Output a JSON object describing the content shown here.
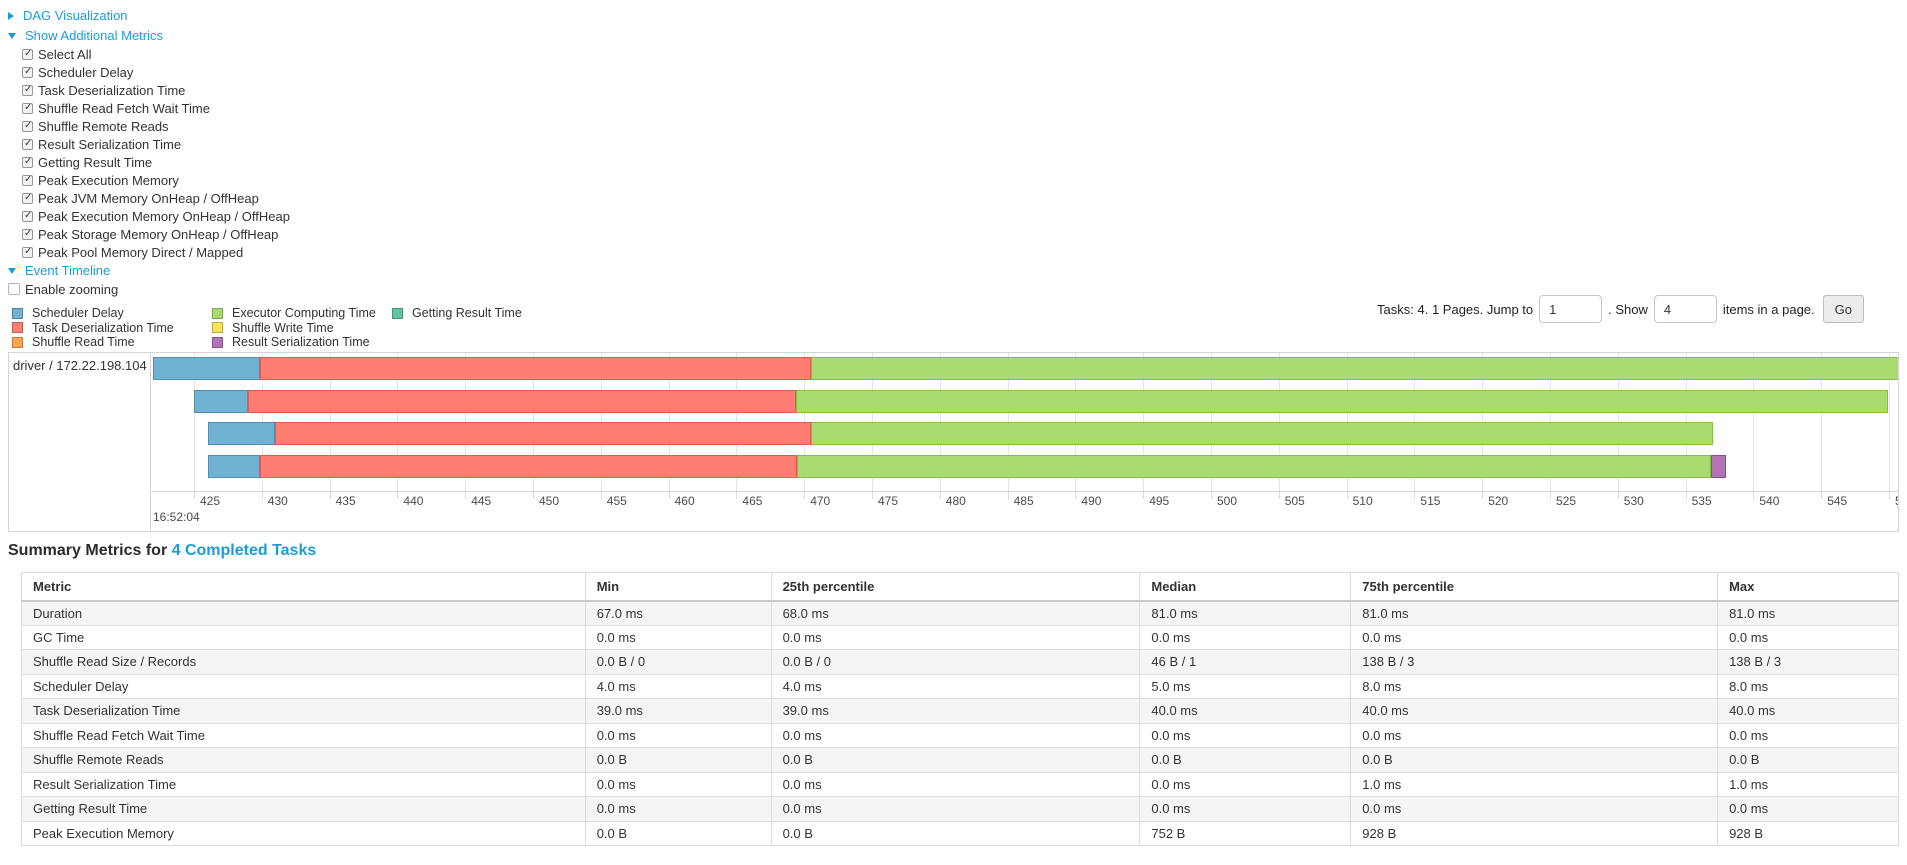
{
  "controls": {
    "dag": {
      "label": "DAG Visualization",
      "expanded": false
    },
    "metrics_toggle": {
      "label": "Show Additional Metrics",
      "expanded": true
    },
    "checkboxes": [
      {
        "label": "Select All",
        "checked": true
      },
      {
        "label": "Scheduler Delay",
        "checked": true
      },
      {
        "label": "Task Deserialization Time",
        "checked": true
      },
      {
        "label": "Shuffle Read Fetch Wait Time",
        "checked": true
      },
      {
        "label": "Shuffle Remote Reads",
        "checked": true
      },
      {
        "label": "Result Serialization Time",
        "checked": true
      },
      {
        "label": "Getting Result Time",
        "checked": true
      },
      {
        "label": "Peak Execution Memory",
        "checked": true
      },
      {
        "label": "Peak JVM Memory OnHeap / OffHeap",
        "checked": true
      },
      {
        "label": "Peak Execution Memory OnHeap / OffHeap",
        "checked": true
      },
      {
        "label": "Peak Storage Memory OnHeap / OffHeap",
        "checked": true
      },
      {
        "label": "Peak Pool Memory Direct / Mapped",
        "checked": true
      }
    ],
    "event_timeline": {
      "label": "Event Timeline",
      "expanded": true
    },
    "enable_zooming": {
      "label": "Enable zooming",
      "checked": false
    }
  },
  "colors": {
    "scheduler_delay": "#6FB2D4",
    "scheduler_delay_border": "#548EAD",
    "task_deserialization": "#FF7E72",
    "task_deserialization_border": "#E05A50",
    "shuffle_read": "#FCA450",
    "shuffle_read_border": "#DE8336",
    "executor_computing": "#A9DB70",
    "executor_computing_border": "#85BD4B",
    "shuffle_write": "#F8E35B",
    "shuffle_write_border": "#D9C23E",
    "result_serialization": "#B173B5",
    "result_serialization_border": "#8E4E93",
    "getting_result": "#63C3A3",
    "getting_result_border": "#44A384",
    "link_blue": "#1b9cd9"
  },
  "legend": {
    "columns": [
      [
        {
          "label": "Scheduler Delay",
          "key": "scheduler_delay"
        },
        {
          "label": "Task Deserialization Time",
          "key": "task_deserialization"
        },
        {
          "label": "Shuffle Read Time",
          "key": "shuffle_read"
        }
      ],
      [
        {
          "label": "Executor Computing Time",
          "key": "executor_computing"
        },
        {
          "label": "Shuffle Write Time",
          "key": "shuffle_write"
        },
        {
          "label": "Result Serialization Time",
          "key": "result_serialization"
        }
      ],
      [
        {
          "label": "Getting Result Time",
          "key": "getting_result"
        }
      ]
    ]
  },
  "pagination": {
    "text_before": "Tasks: 4. 1 Pages. Jump to",
    "jump_value": "1",
    "text_mid": ". Show",
    "show_value": "4",
    "text_after": "items in a page.",
    "go_label": "Go"
  },
  "timeline": {
    "group_label": "driver / 172.22.198.104",
    "axis": {
      "tick_start": 425,
      "tick_step": 5,
      "tick_count": 26,
      "time_label": "16:52:04"
    },
    "chart_data": {
      "type": "timeline-gantt",
      "x_units": "ms within 16:52:04",
      "x_range": [
        421,
        551
      ],
      "bars": [
        {
          "segments": [
            {
              "key": "scheduler_delay",
              "t0": 422.0,
              "t1": 429.9
            },
            {
              "key": "task_deserialization",
              "t0": 429.9,
              "t1": 470.5
            },
            {
              "key": "executor_computing",
              "t0": 470.5,
              "t1": 552.0
            }
          ]
        },
        {
          "segments": [
            {
              "key": "scheduler_delay",
              "t0": 425.0,
              "t1": 429.0
            },
            {
              "key": "task_deserialization",
              "t0": 429.0,
              "t1": 469.4
            },
            {
              "key": "executor_computing",
              "t0": 469.4,
              "t1": 549.9
            }
          ]
        },
        {
          "segments": [
            {
              "key": "scheduler_delay",
              "t0": 426.0,
              "t1": 431.0
            },
            {
              "key": "task_deserialization",
              "t0": 431.0,
              "t1": 470.5
            },
            {
              "key": "executor_computing",
              "t0": 470.5,
              "t1": 537.0
            }
          ]
        },
        {
          "segments": [
            {
              "key": "scheduler_delay",
              "t0": 426.0,
              "t1": 429.9
            },
            {
              "key": "task_deserialization",
              "t0": 429.9,
              "t1": 469.5
            },
            {
              "key": "executor_computing",
              "t0": 469.5,
              "t1": 536.9
            },
            {
              "key": "result_serialization",
              "t0": 536.9,
              "t1": 538.0
            }
          ]
        }
      ]
    }
  },
  "summary": {
    "title_prefix": "Summary Metrics for ",
    "title_link": "4 Completed Tasks",
    "table": {
      "headers": [
        "Metric",
        "Min",
        "25th percentile",
        "Median",
        "75th percentile",
        "Max"
      ],
      "rows": [
        {
          "metric": "Duration",
          "values": [
            "67.0 ms",
            "68.0 ms",
            "81.0 ms",
            "81.0 ms",
            "81.0 ms"
          ]
        },
        {
          "metric": "GC Time",
          "values": [
            "0.0 ms",
            "0.0 ms",
            "0.0 ms",
            "0.0 ms",
            "0.0 ms"
          ]
        },
        {
          "metric": "Shuffle Read Size / Records",
          "values": [
            "0.0 B / 0",
            "0.0 B / 0",
            "46 B / 1",
            "138 B / 3",
            "138 B / 3"
          ]
        },
        {
          "metric": "Scheduler Delay",
          "values": [
            "4.0 ms",
            "4.0 ms",
            "5.0 ms",
            "8.0 ms",
            "8.0 ms"
          ]
        },
        {
          "metric": "Task Deserialization Time",
          "values": [
            "39.0 ms",
            "39.0 ms",
            "40.0 ms",
            "40.0 ms",
            "40.0 ms"
          ]
        },
        {
          "metric": "Shuffle Read Fetch Wait Time",
          "values": [
            "0.0 ms",
            "0.0 ms",
            "0.0 ms",
            "0.0 ms",
            "0.0 ms"
          ]
        },
        {
          "metric": "Shuffle Remote Reads",
          "values": [
            "0.0 B",
            "0.0 B",
            "0.0 B",
            "0.0 B",
            "0.0 B"
          ]
        },
        {
          "metric": "Result Serialization Time",
          "values": [
            "0.0 ms",
            "0.0 ms",
            "0.0 ms",
            "1.0 ms",
            "1.0 ms"
          ]
        },
        {
          "metric": "Getting Result Time",
          "values": [
            "0.0 ms",
            "0.0 ms",
            "0.0 ms",
            "0.0 ms",
            "0.0 ms"
          ]
        },
        {
          "metric": "Peak Execution Memory",
          "values": [
            "0.0 B",
            "0.0 B",
            "752 B",
            "928 B",
            "928 B"
          ]
        }
      ]
    }
  }
}
